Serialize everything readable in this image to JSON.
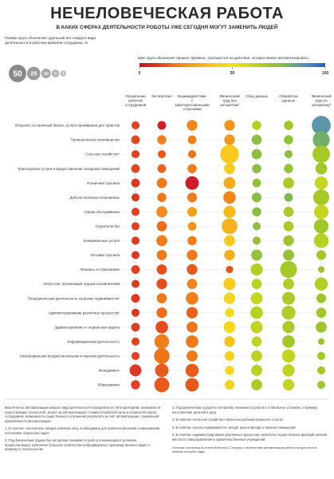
{
  "title": "НЕЧЕЛОВЕЧЕСКАЯ РАБОТА",
  "subtitle": "В КАКИХ СФЕРАХ ДЕЯТЕЛЬНОСТИ РОБОТЫ УЖЕ СЕГОДНЯ МОГУТ ЗАМЕНИТЬ ЛЮДЕЙ",
  "size_legend": {
    "caption": "Размер круга обозначает удельный вес каждого вида деятельности в рабочем времени сотрудника, %",
    "circles": [
      {
        "value": 50,
        "label": "50",
        "color": "#8a8a8a"
      },
      {
        "value": 25,
        "label": "25",
        "color": "#9a9a9a"
      },
      {
        "value": 10,
        "label": "10",
        "color": "#a8a8a8"
      },
      {
        "value": 5,
        "label": "5",
        "color": "#b4b4b4"
      },
      {
        "value": 2,
        "label": "2",
        "color": "#c0c0c0"
      }
    ]
  },
  "color_legend": {
    "caption": "Цвет круга обозначает процент времени, тратящегося на действия, которые можно автоматизировать",
    "tick_labels": [
      "0",
      "50",
      "100"
    ],
    "stops": [
      "#c8102e",
      "#e03a1e",
      "#f07a1a",
      "#f4a41c",
      "#f8c91e",
      "#f2e21c",
      "#c9d81f",
      "#9cc62a",
      "#77b35e",
      "#4f8ac9",
      "#2a5fb0"
    ]
  },
  "chart_data": {
    "type": "scatter",
    "columns": [
      "Управление работой сотрудников",
      "Экспертиза¹",
      "Взаимодействие с заинтересованными сторонами",
      "Физический труд без алгоритма²",
      "Сбор данных",
      "Обработка данных",
      "Физический труд по алгоритму³"
    ],
    "rows": [
      "Общепит, гостиничный бизнес, услуги проживания для туристов",
      "Промышленное производство",
      "Сельское хозяйство⁴",
      "Транспортные услуги и предоставление складских помещений",
      "Розничная торговля",
      "Добыча полезных ископаемых",
      "Сфера обслуживания",
      "Строительство",
      "Коммунальные услуги",
      "Оптовая торговля",
      "Финансы и страхование",
      "Искусство, организация отдыха и развлечений",
      "Посредническая деятельность на рынке недвижимости⁵",
      "Администрирование различных процессов⁶",
      "Здравоохранение и социальная защита",
      "Информационная деятельность",
      "Узкопрофильная профессиональная и научная деятельность",
      "Менеджмент",
      "Образование"
    ],
    "size_unit": "% рабочего времени",
    "color_unit": "% автоматизируемого времени",
    "values": [
      [
        [
          4,
          11
        ],
        [
          5,
          3
        ],
        [
          9,
          23
        ],
        [
          9,
          26
        ],
        [
          6,
          64
        ],
        [
          6,
          69
        ],
        [
          39,
          87
        ]
      ],
      [
        [
          5,
          12
        ],
        [
          6,
          22
        ],
        [
          5,
          22
        ],
        [
          9,
          27
        ],
        [
          8,
          74
        ],
        [
          6,
          73
        ],
        [
          30,
          81
        ]
      ],
      [
        [
          4,
          11
        ],
        [
          4,
          15
        ],
        [
          4,
          19
        ],
        [
          38,
          40
        ],
        [
          8,
          74
        ],
        [
          4,
          74
        ],
        [
          32,
          68
        ]
      ],
      [
        [
          5,
          12
        ],
        [
          5,
          16
        ],
        [
          6,
          21
        ],
        [
          10,
          41
        ],
        [
          6,
          75
        ],
        [
          6,
          72
        ],
        [
          12,
          69
        ]
      ],
      [
        [
          5,
          9
        ],
        [
          8,
          20
        ],
        [
          17,
          3
        ],
        [
          12,
          32
        ],
        [
          5,
          73
        ],
        [
          10,
          67
        ],
        [
          16,
          61
        ]
      ],
      [
        [
          4,
          9
        ],
        [
          6,
          20
        ],
        [
          7,
          20
        ],
        [
          14,
          23
        ],
        [
          7,
          75
        ],
        [
          5,
          77
        ],
        [
          26,
          68
        ]
      ],
      [
        [
          4,
          11
        ],
        [
          10,
          24
        ],
        [
          7,
          29
        ],
        [
          13,
          36
        ],
        [
          6,
          75
        ],
        [
          8,
          67
        ],
        [
          20,
          61
        ]
      ],
      [
        [
          4,
          11
        ],
        [
          8,
          18
        ],
        [
          5,
          26
        ],
        [
          25,
          34
        ],
        [
          4,
          74
        ],
        [
          8,
          67
        ],
        [
          21,
          69
        ]
      ],
      [
        [
          4,
          10
        ],
        [
          10,
          21
        ],
        [
          6,
          21
        ],
        [
          10,
          40
        ],
        [
          4,
          72
        ],
        [
          9,
          70
        ],
        [
          21,
          64
        ]
      ],
      [
        [
          4,
          9
        ],
        [
          8,
          20
        ],
        [
          9,
          20
        ],
        [
          9,
          33
        ],
        [
          10,
          72
        ],
        [
          10,
          72
        ],
        [
          7,
          69
        ]
      ],
      [
        [
          5,
          11
        ],
        [
          8,
          13
        ],
        [
          9,
          15
        ],
        [
          3,
          14
        ],
        [
          13,
          65
        ],
        [
          30,
          68
        ],
        [
          2,
          70
        ]
      ],
      [
        [
          4,
          10
        ],
        [
          9,
          13
        ],
        [
          8,
          22
        ],
        [
          13,
          41
        ],
        [
          8,
          64
        ],
        [
          10,
          66
        ],
        [
          16,
          65
        ]
      ],
      [
        [
          5,
          9
        ],
        [
          8,
          20
        ],
        [
          14,
          21
        ],
        [
          11,
          45
        ],
        [
          12,
          61
        ],
        [
          15,
          67
        ],
        [
          7,
          70
        ]
      ],
      [
        [
          4,
          9
        ],
        [
          9,
          18
        ],
        [
          11,
          16
        ],
        [
          6,
          46
        ],
        [
          14,
          64
        ],
        [
          18,
          66
        ],
        [
          8,
          69
        ]
      ],
      [
        [
          5,
          11
        ],
        [
          14,
          13
        ],
        [
          10,
          19
        ],
        [
          12,
          46
        ],
        [
          13,
          62
        ],
        [
          13,
          67
        ],
        [
          10,
          70
        ]
      ],
      [
        [
          4,
          11
        ],
        [
          21,
          21
        ],
        [
          14,
          20
        ],
        [
          9,
          38
        ],
        [
          8,
          62
        ],
        [
          14,
          69
        ],
        [
          2,
          70
        ]
      ],
      [
        [
          4,
          11
        ],
        [
          24,
          19
        ],
        [
          10,
          20
        ],
        [
          7,
          43
        ],
        [
          10,
          63
        ],
        [
          16,
          62
        ],
        [
          4,
          69
        ]
      ],
      [
        [
          12,
          9
        ],
        [
          17,
          15
        ],
        [
          16,
          15
        ],
        [
          6,
          45
        ],
        [
          10,
          64
        ],
        [
          13,
          63
        ],
        [
          4,
          68
        ]
      ],
      [
        [
          6,
          11
        ],
        [
          22,
          15
        ],
        [
          17,
          15
        ],
        [
          7,
          44
        ],
        [
          10,
          67
        ],
        [
          11,
          62
        ],
        [
          4,
          70
        ]
      ]
    ]
  },
  "notes_left": [
    "Вероятность автоматизации каждого вида деятельности определена по пяти критериям: возможности существующих технологий, затрат на автоматизацию, стоимости рабочей силы и сложности поиска сотрудников, возможности существенного улучшения результата за счёт автоматизации, социальной приемлемости автоматизации.",
    "1. В понятие «экспертиза» входит комплекс мер, необходимых для принятия решений, планирования, постановки творческих задач.",
    "2. Под физическим трудом без алгоритма понимается работа в меняющихся условиях, предполагающих появление большого количества непредвиденных производственных задач, к примеру в строительстве."
  ],
  "notes_right": [
    "3. Под физическим трудом по алгоритму понимается работа в стабильных условиях, к примеру изготовление деталей в цеху.",
    "4. В понятие «сельское хозяйство» включены рыбный промысел и охота.",
    "5. В понятие «рынок недвижимости» входят рынок аренды и лизинга помещений.",
    "6. В понятие «администрирование различных процессов» включено осуществление функций органов местного самоуправления и правительственных учреждений."
  ],
  "source": "Источник: аналитика из отчета McKinsey & Company о перспективах автоматизации рабочих процессов и их влиянии на рынок труда."
}
